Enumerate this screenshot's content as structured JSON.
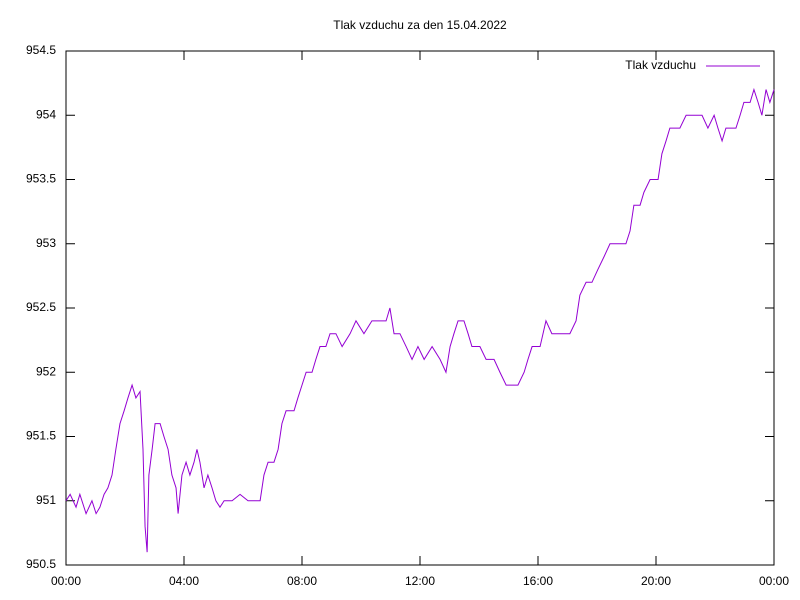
{
  "chart_data": {
    "type": "line",
    "title": "Tlak vzduchu za den 15.04.2022",
    "x": [
      0,
      0.14,
      0.34,
      0.47,
      0.68,
      0.88,
      1.02,
      1.15,
      1.29,
      1.42,
      1.56,
      1.69,
      1.83,
      1.97,
      2.1,
      2.24,
      2.37,
      2.51,
      2.61,
      2.68,
      2.75,
      2.81,
      2.92,
      3.02,
      3.19,
      3.32,
      3.46,
      3.59,
      3.73,
      3.8,
      3.93,
      4.07,
      4.2,
      4.34,
      4.44,
      4.54,
      4.68,
      4.81,
      4.95,
      5.08,
      5.22,
      5.36,
      5.63,
      5.9,
      6.17,
      6.44,
      6.58,
      6.71,
      6.85,
      7.05,
      7.19,
      7.32,
      7.46,
      7.73,
      7.86,
      8.0,
      8.14,
      8.34,
      8.47,
      8.61,
      8.81,
      8.95,
      9.15,
      9.36,
      9.63,
      9.83,
      10.1,
      10.37,
      10.64,
      10.85,
      10.98,
      11.12,
      11.32,
      11.53,
      11.73,
      11.93,
      12.14,
      12.41,
      12.68,
      12.88,
      13.02,
      13.15,
      13.29,
      13.49,
      13.63,
      13.76,
      14.03,
      14.24,
      14.51,
      14.71,
      14.92,
      15.12,
      15.32,
      15.53,
      15.66,
      15.8,
      16.07,
      16.27,
      16.47,
      16.68,
      16.88,
      17.08,
      17.29,
      17.42,
      17.63,
      17.83,
      18.03,
      18.24,
      18.44,
      18.71,
      18.98,
      19.12,
      19.25,
      19.46,
      19.59,
      19.8,
      20.07,
      20.2,
      20.34,
      20.47,
      20.81,
      21.02,
      21.29,
      21.56,
      21.76,
      21.97,
      22.1,
      22.24,
      22.37,
      22.71,
      22.85,
      22.98,
      23.19,
      23.32,
      23.46,
      23.59,
      23.73,
      23.86,
      24
    ],
    "series": [
      {
        "name": "Tlak vzduchu",
        "color": "#9400d3",
        "values": [
          951.0,
          951.05,
          950.95,
          951.05,
          950.9,
          951.0,
          950.9,
          950.95,
          951.05,
          951.1,
          951.2,
          951.4,
          951.6,
          951.7,
          951.8,
          951.9,
          951.8,
          951.85,
          951.4,
          950.8,
          950.6,
          951.2,
          951.4,
          951.6,
          951.6,
          951.5,
          951.4,
          951.2,
          951.1,
          950.9,
          951.2,
          951.3,
          951.2,
          951.3,
          951.4,
          951.3,
          951.1,
          951.2,
          951.1,
          951.0,
          950.95,
          951.0,
          951.0,
          951.05,
          951.0,
          951.0,
          951.0,
          951.2,
          951.3,
          951.3,
          951.4,
          951.6,
          951.7,
          951.7,
          951.8,
          951.9,
          952.0,
          952.0,
          952.1,
          952.2,
          952.2,
          952.3,
          952.3,
          952.2,
          952.3,
          952.4,
          952.3,
          952.4,
          952.4,
          952.4,
          952.5,
          952.3,
          952.3,
          952.2,
          952.1,
          952.2,
          952.1,
          952.2,
          952.1,
          952.0,
          952.2,
          952.3,
          952.4,
          952.4,
          952.3,
          952.2,
          952.2,
          952.1,
          952.1,
          952.0,
          951.9,
          951.9,
          951.9,
          952.0,
          952.1,
          952.2,
          952.2,
          952.4,
          952.3,
          952.3,
          952.3,
          952.3,
          952.4,
          952.6,
          952.7,
          952.7,
          952.8,
          952.9,
          953.0,
          953.0,
          953.0,
          953.1,
          953.3,
          953.3,
          953.4,
          953.5,
          953.5,
          953.7,
          953.8,
          953.9,
          953.9,
          954.0,
          954.0,
          954.0,
          953.9,
          954.0,
          953.9,
          953.8,
          953.9,
          953.9,
          954.0,
          954.1,
          954.1,
          954.2,
          954.1,
          954.0,
          954.2,
          954.1,
          954.2
        ]
      }
    ],
    "xlim": [
      0,
      24
    ],
    "xticks": [
      {
        "value": 0,
        "label": "00:00"
      },
      {
        "value": 4,
        "label": "04:00"
      },
      {
        "value": 8,
        "label": "08:00"
      },
      {
        "value": 12,
        "label": "12:00"
      },
      {
        "value": 16,
        "label": "16:00"
      },
      {
        "value": 20,
        "label": "20:00"
      },
      {
        "value": 24,
        "label": "00:00"
      }
    ],
    "ylim": [
      950.5,
      954.5
    ],
    "yticks": [
      950.5,
      951,
      951.5,
      952,
      952.5,
      953,
      953.5,
      954,
      954.5
    ],
    "legend": "top-right"
  }
}
